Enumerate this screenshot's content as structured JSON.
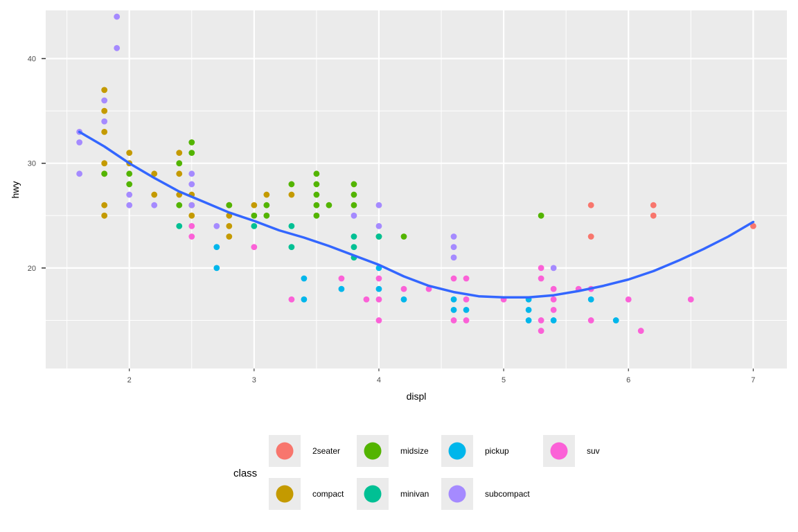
{
  "chart_data": {
    "type": "scatter",
    "xlabel": "displ",
    "ylabel": "hwy",
    "xlim": [
      1.33,
      7.27
    ],
    "ylim": [
      10.4,
      44.6
    ],
    "x_ticks": [
      2,
      3,
      4,
      5,
      6,
      7
    ],
    "y_ticks": [
      20,
      30,
      40
    ],
    "grid": true,
    "legend": {
      "title": "class",
      "position": "bottom",
      "entries": [
        {
          "name": "2seater",
          "color": "#F8766D"
        },
        {
          "name": "compact",
          "color": "#C49A00"
        },
        {
          "name": "midsize",
          "color": "#53B400"
        },
        {
          "name": "minivan",
          "color": "#00C094"
        },
        {
          "name": "pickup",
          "color": "#00B6EB"
        },
        {
          "name": "subcompact",
          "color": "#A58AFF"
        },
        {
          "name": "suv",
          "color": "#FB61D7"
        }
      ]
    },
    "series": [
      {
        "name": "2seater",
        "color": "#F8766D",
        "x": [
          5.7,
          5.7,
          6.2,
          6.2,
          7.0
        ],
        "y": [
          26,
          23,
          26,
          25,
          24
        ]
      },
      {
        "name": "compact",
        "color": "#C49A00",
        "x": [
          1.8,
          1.8,
          1.8,
          1.8,
          1.8,
          1.8,
          1.8,
          2.0,
          2.0,
          2.2,
          2.2,
          2.4,
          2.4,
          2.4,
          2.5,
          2.5,
          2.5,
          2.8,
          2.8,
          2.8,
          2.8,
          3.0,
          3.1,
          3.3
        ],
        "y": [
          37,
          35,
          33,
          30,
          26,
          25,
          29,
          31,
          30,
          29,
          27,
          31,
          29,
          27,
          27,
          25,
          26,
          25,
          24,
          23,
          26,
          26,
          27,
          27
        ]
      },
      {
        "name": "midsize",
        "color": "#53B400",
        "x": [
          1.8,
          2.0,
          2.0,
          2.4,
          2.4,
          2.5,
          2.5,
          2.8,
          3.0,
          3.1,
          3.1,
          3.3,
          3.5,
          3.5,
          3.5,
          3.5,
          3.5,
          3.6,
          3.8,
          3.8,
          3.8,
          4.0,
          4.2,
          5.3
        ],
        "y": [
          29,
          29,
          28,
          30,
          26,
          32,
          31,
          26,
          25,
          26,
          25,
          28,
          29,
          28,
          27,
          26,
          25,
          26,
          28,
          27,
          26,
          23,
          23,
          25
        ]
      },
      {
        "name": "minivan",
        "color": "#00C094",
        "x": [
          2.4,
          3.0,
          3.3,
          3.3,
          3.8,
          3.8,
          3.8,
          4.0
        ],
        "y": [
          24,
          24,
          24,
          22,
          23,
          22,
          21,
          23
        ]
      },
      {
        "name": "pickup",
        "color": "#00B6EB",
        "x": [
          2.7,
          2.7,
          3.4,
          3.4,
          3.7,
          4.0,
          4.0,
          4.2,
          4.6,
          4.6,
          4.7,
          5.2,
          5.2,
          5.2,
          5.4,
          5.7,
          5.9
        ],
        "y": [
          22,
          20,
          19,
          17,
          18,
          20,
          18,
          17,
          17,
          16,
          16,
          17,
          16,
          15,
          15,
          17,
          15
        ]
      },
      {
        "name": "subcompact",
        "color": "#A58AFF",
        "x": [
          1.6,
          1.6,
          1.6,
          1.8,
          1.8,
          1.9,
          1.9,
          2.0,
          2.0,
          2.2,
          2.5,
          2.5,
          2.5,
          2.7,
          3.8,
          4.0,
          4.0,
          4.6,
          4.6,
          4.6,
          5.4
        ],
        "y": [
          33,
          32,
          29,
          36,
          34,
          44,
          41,
          27,
          26,
          26,
          29,
          28,
          26,
          24,
          25,
          26,
          24,
          23,
          22,
          21,
          20
        ]
      },
      {
        "name": "suv",
        "color": "#FB61D7",
        "x": [
          2.5,
          2.5,
          3.0,
          3.3,
          3.7,
          3.9,
          4.0,
          4.0,
          4.0,
          4.2,
          4.4,
          4.6,
          4.6,
          4.7,
          4.7,
          4.7,
          5.0,
          5.3,
          5.3,
          5.3,
          5.3,
          5.4,
          5.4,
          5.4,
          5.6,
          5.7,
          5.7,
          6.0,
          6.1,
          6.5
        ],
        "y": [
          24,
          23,
          22,
          17,
          19,
          17,
          19,
          17,
          15,
          18,
          18,
          19,
          15,
          19,
          17,
          15,
          17,
          20,
          19,
          15,
          14,
          18,
          17,
          16,
          18,
          18,
          15,
          17,
          14,
          17
        ]
      }
    ],
    "smooth": {
      "method": "loess",
      "color": "#3366FF",
      "x": [
        1.6,
        1.8,
        2.0,
        2.2,
        2.4,
        2.6,
        2.8,
        3.0,
        3.2,
        3.4,
        3.6,
        3.8,
        4.0,
        4.2,
        4.4,
        4.6,
        4.8,
        5.0,
        5.2,
        5.4,
        5.6,
        5.8,
        6.0,
        6.2,
        6.4,
        6.6,
        6.8,
        7.0
      ],
      "y": [
        33.0,
        31.6,
        30.0,
        28.6,
        27.3,
        26.3,
        25.3,
        24.5,
        23.6,
        22.9,
        22.1,
        21.2,
        20.3,
        19.2,
        18.3,
        17.7,
        17.3,
        17.2,
        17.2,
        17.4,
        17.8,
        18.3,
        18.9,
        19.7,
        20.7,
        21.8,
        23.0,
        24.4
      ]
    }
  }
}
